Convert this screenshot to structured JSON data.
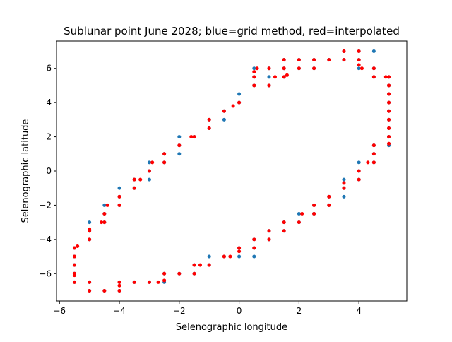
{
  "chart_data": {
    "type": "scatter",
    "title": "Sublunar point June 2028; blue=grid method, red=interpolated",
    "xlabel": "Selenographic longitude",
    "ylabel": "Selenographic latitude",
    "xlim": [
      -6.1,
      5.6
    ],
    "ylim": [
      -7.6,
      7.6
    ],
    "xticks": [
      -6,
      -4,
      -2,
      0,
      2,
      4
    ],
    "xtick_labels": [
      "−6",
      "−4",
      "−2",
      "0",
      "2",
      "4"
    ],
    "yticks": [
      -6,
      -4,
      -2,
      0,
      2,
      4,
      6
    ],
    "ytick_labels": [
      "−6",
      "−4",
      "−2",
      "0",
      "2",
      "4",
      "6"
    ],
    "grid": false,
    "legend": "none",
    "series": [
      {
        "color": "#1f77b4",
        "marker_size": 4,
        "points": [
          [
            3.5,
            7.0
          ],
          [
            4.0,
            7.0
          ],
          [
            4.5,
            7.0
          ],
          [
            4.0,
            6.0
          ],
          [
            4.0,
            6.5
          ],
          [
            4.5,
            6.0
          ],
          [
            4.5,
            5.5
          ],
          [
            5.0,
            5.5
          ],
          [
            5.0,
            5.0
          ],
          [
            5.0,
            4.5
          ],
          [
            5.0,
            4.0
          ],
          [
            5.0,
            3.5
          ],
          [
            5.0,
            3.0
          ],
          [
            5.0,
            2.5
          ],
          [
            5.0,
            2.0
          ],
          [
            5.0,
            1.5
          ],
          [
            4.5,
            1.5
          ],
          [
            4.5,
            1.0
          ],
          [
            4.5,
            0.5
          ],
          [
            4.0,
            0.5
          ],
          [
            4.0,
            0.0
          ],
          [
            4.0,
            -0.5
          ],
          [
            3.5,
            -0.5
          ],
          [
            3.5,
            -1.0
          ],
          [
            3.5,
            -1.5
          ],
          [
            3.0,
            -1.5
          ],
          [
            3.0,
            -2.0
          ],
          [
            2.5,
            -2.0
          ],
          [
            2.5,
            -2.5
          ],
          [
            2.0,
            -2.5
          ],
          [
            2.0,
            -3.0
          ],
          [
            1.5,
            -3.0
          ],
          [
            1.5,
            -3.5
          ],
          [
            1.0,
            -3.5
          ],
          [
            1.0,
            -4.0
          ],
          [
            0.5,
            -4.0
          ],
          [
            0.5,
            -4.5
          ],
          [
            0.5,
            -5.0
          ],
          [
            0.0,
            -4.5
          ],
          [
            0.0,
            -5.0
          ],
          [
            -0.5,
            -5.0
          ],
          [
            -1.0,
            -5.0
          ],
          [
            -1.0,
            -5.5
          ],
          [
            -1.5,
            -5.5
          ],
          [
            -1.5,
            -6.0
          ],
          [
            -2.0,
            -6.0
          ],
          [
            -2.5,
            -6.0
          ],
          [
            -2.5,
            -6.5
          ],
          [
            -3.0,
            -6.5
          ],
          [
            -3.5,
            -6.5
          ],
          [
            -4.0,
            -6.5
          ],
          [
            -4.0,
            -7.0
          ],
          [
            -4.5,
            -7.0
          ],
          [
            -5.0,
            -7.0
          ],
          [
            -5.0,
            -6.5
          ],
          [
            -5.5,
            -6.5
          ],
          [
            -5.5,
            -6.0
          ],
          [
            -5.5,
            -5.5
          ],
          [
            -5.5,
            -5.0
          ],
          [
            -5.5,
            -4.5
          ],
          [
            -5.0,
            -4.0
          ],
          [
            -5.0,
            -3.5
          ],
          [
            -5.0,
            -3.0
          ],
          [
            -4.5,
            -3.0
          ],
          [
            -4.5,
            -2.5
          ],
          [
            -4.5,
            -2.0
          ],
          [
            -4.0,
            -2.0
          ],
          [
            -4.0,
            -1.5
          ],
          [
            -4.0,
            -1.0
          ],
          [
            -3.5,
            -1.0
          ],
          [
            -3.5,
            -0.5
          ],
          [
            -3.0,
            -0.5
          ],
          [
            -3.0,
            0.0
          ],
          [
            -3.0,
            0.5
          ],
          [
            -2.5,
            0.5
          ],
          [
            -2.5,
            1.0
          ],
          [
            -2.0,
            1.0
          ],
          [
            -2.0,
            1.5
          ],
          [
            -2.0,
            2.0
          ],
          [
            -1.5,
            2.0
          ],
          [
            -1.0,
            2.5
          ],
          [
            -1.0,
            3.0
          ],
          [
            -0.5,
            3.0
          ],
          [
            -0.5,
            3.5
          ],
          [
            0.0,
            4.0
          ],
          [
            0.0,
            4.5
          ],
          [
            0.5,
            5.0
          ],
          [
            0.5,
            5.5
          ],
          [
            0.5,
            6.0
          ],
          [
            1.0,
            5.5
          ],
          [
            1.0,
            5.0
          ],
          [
            1.0,
            6.0
          ],
          [
            1.5,
            5.5
          ],
          [
            1.5,
            6.0
          ],
          [
            1.5,
            6.5
          ],
          [
            2.0,
            6.0
          ],
          [
            2.0,
            6.5
          ],
          [
            2.5,
            6.0
          ],
          [
            2.5,
            6.5
          ],
          [
            3.0,
            6.5
          ],
          [
            3.5,
            6.5
          ]
        ]
      },
      {
        "color": "#ff0000",
        "marker_size": 4,
        "points": [
          [
            3.5,
            7.0
          ],
          [
            4.0,
            7.0
          ],
          [
            4.0,
            6.5
          ],
          [
            4.0,
            6.2
          ],
          [
            4.1,
            6.0
          ],
          [
            4.5,
            6.0
          ],
          [
            4.5,
            5.5
          ],
          [
            4.9,
            5.5
          ],
          [
            5.0,
            5.5
          ],
          [
            5.0,
            5.0
          ],
          [
            5.0,
            4.5
          ],
          [
            5.0,
            4.0
          ],
          [
            5.0,
            3.5
          ],
          [
            5.0,
            3.0
          ],
          [
            5.0,
            2.5
          ],
          [
            5.0,
            2.0
          ],
          [
            5.0,
            1.6
          ],
          [
            4.5,
            1.5
          ],
          [
            4.5,
            1.0
          ],
          [
            4.5,
            0.5
          ],
          [
            4.3,
            0.5
          ],
          [
            4.0,
            0.0
          ],
          [
            4.0,
            -0.5
          ],
          [
            3.5,
            -0.7
          ],
          [
            3.5,
            -1.0
          ],
          [
            3.0,
            -1.5
          ],
          [
            3.0,
            -2.0
          ],
          [
            2.5,
            -2.0
          ],
          [
            2.5,
            -2.5
          ],
          [
            2.1,
            -2.5
          ],
          [
            2.0,
            -3.0
          ],
          [
            1.5,
            -3.0
          ],
          [
            1.5,
            -3.5
          ],
          [
            1.0,
            -3.5
          ],
          [
            1.0,
            -4.0
          ],
          [
            0.5,
            -4.0
          ],
          [
            0.5,
            -4.5
          ],
          [
            0.0,
            -4.5
          ],
          [
            0.0,
            -4.7
          ],
          [
            -0.3,
            -5.0
          ],
          [
            -0.5,
            -5.0
          ],
          [
            -1.0,
            -5.5
          ],
          [
            -1.3,
            -5.5
          ],
          [
            -1.5,
            -5.5
          ],
          [
            -1.5,
            -6.0
          ],
          [
            -2.0,
            -6.0
          ],
          [
            -2.5,
            -6.0
          ],
          [
            -2.5,
            -6.4
          ],
          [
            -2.7,
            -6.5
          ],
          [
            -3.0,
            -6.5
          ],
          [
            -3.5,
            -6.5
          ],
          [
            -4.0,
            -6.5
          ],
          [
            -4.0,
            -6.7
          ],
          [
            -4.0,
            -7.0
          ],
          [
            -4.5,
            -7.0
          ],
          [
            -5.0,
            -7.0
          ],
          [
            -5.0,
            -6.5
          ],
          [
            -5.5,
            -6.5
          ],
          [
            -5.5,
            -6.1
          ],
          [
            -5.5,
            -6.0
          ],
          [
            -5.5,
            -5.5
          ],
          [
            -5.5,
            -5.0
          ],
          [
            -5.5,
            -4.5
          ],
          [
            -5.4,
            -4.4
          ],
          [
            -5.0,
            -4.0
          ],
          [
            -5.0,
            -3.5
          ],
          [
            -5.0,
            -3.4
          ],
          [
            -4.6,
            -3.0
          ],
          [
            -4.5,
            -3.0
          ],
          [
            -4.5,
            -2.5
          ],
          [
            -4.4,
            -2.0
          ],
          [
            -4.0,
            -2.0
          ],
          [
            -4.0,
            -1.5
          ],
          [
            -3.5,
            -1.0
          ],
          [
            -3.5,
            -0.5
          ],
          [
            -3.3,
            -0.5
          ],
          [
            -3.0,
            0.0
          ],
          [
            -2.9,
            0.5
          ],
          [
            -2.5,
            0.5
          ],
          [
            -2.5,
            1.0
          ],
          [
            -2.0,
            1.5
          ],
          [
            -1.6,
            2.0
          ],
          [
            -1.5,
            2.0
          ],
          [
            -1.0,
            2.5
          ],
          [
            -1.0,
            3.0
          ],
          [
            -0.5,
            3.5
          ],
          [
            -0.2,
            3.8
          ],
          [
            0.0,
            4.0
          ],
          [
            0.5,
            5.0
          ],
          [
            0.5,
            5.5
          ],
          [
            0.5,
            5.8
          ],
          [
            0.6,
            6.0
          ],
          [
            1.0,
            6.0
          ],
          [
            1.0,
            5.0
          ],
          [
            1.2,
            5.5
          ],
          [
            1.5,
            5.5
          ],
          [
            1.6,
            5.6
          ],
          [
            1.5,
            6.0
          ],
          [
            1.5,
            6.5
          ],
          [
            2.0,
            6.0
          ],
          [
            2.0,
            6.5
          ],
          [
            2.5,
            6.0
          ],
          [
            2.5,
            6.5
          ],
          [
            3.0,
            6.5
          ],
          [
            3.5,
            6.5
          ]
        ]
      }
    ]
  }
}
